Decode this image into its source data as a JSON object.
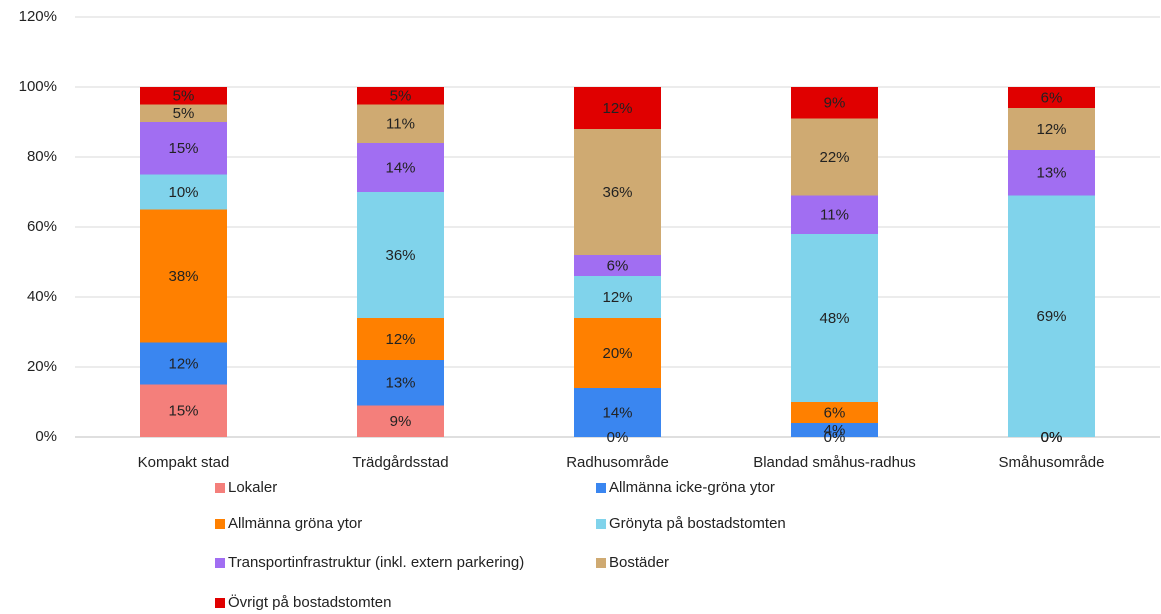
{
  "chart_data": {
    "type": "stacked_bar",
    "categories": [
      "Kompakt stad",
      "Trädgårdsstad",
      "Radhusområde",
      "Blandad småhus-radhus",
      "Småhusområde"
    ],
    "series": [
      {
        "name": "Lokaler",
        "color": "#f47f7b",
        "values": [
          15,
          9,
          0,
          0,
          0
        ],
        "value_labels": [
          "15%",
          "9%",
          "0%",
          "0%",
          "0%"
        ]
      },
      {
        "name": "Allmänna icke-gröna ytor",
        "color": "#3a86f0",
        "values": [
          12,
          13,
          14,
          4,
          0
        ],
        "value_labels": [
          "12%",
          "13%",
          "14%",
          "4%",
          "0%"
        ]
      },
      {
        "name": "Allmänna gröna ytor",
        "color": "#ff8000",
        "values": [
          38,
          12,
          20,
          6,
          0
        ],
        "value_labels": [
          "38%",
          "12%",
          "20%",
          "6%",
          "0%"
        ]
      },
      {
        "name": "Grönyta på bostadstomten",
        "color": "#80d3eb",
        "values": [
          10,
          36,
          12,
          48,
          69
        ],
        "value_labels": [
          "10%",
          "36%",
          "12%",
          "48%",
          "69%"
        ]
      },
      {
        "name": "Transportinfrastruktur (inkl. extern parkering)",
        "color": "#a16ef2",
        "values": [
          15,
          14,
          6,
          11,
          13
        ],
        "value_labels": [
          "15%",
          "14%",
          "6%",
          "11%",
          "13%"
        ]
      },
      {
        "name": "Bostäder",
        "color": "#cfaa72",
        "values": [
          5,
          11,
          36,
          22,
          12
        ],
        "value_labels": [
          "5%",
          "11%",
          "36%",
          "22%",
          "12%"
        ]
      },
      {
        "name": "Övrigt på bostadstomten",
        "color": "#e00000",
        "values": [
          5,
          5,
          12,
          9,
          6
        ],
        "value_labels": [
          "5%",
          "5%",
          "12%",
          "9%",
          "6%"
        ]
      }
    ],
    "ylim": [
      0,
      120
    ],
    "yticks": [
      {
        "value": 0,
        "label": "0%"
      },
      {
        "value": 20,
        "label": "20%"
      },
      {
        "value": 40,
        "label": "40%"
      },
      {
        "value": 60,
        "label": "60%"
      },
      {
        "value": 80,
        "label": "80%"
      },
      {
        "value": 100,
        "label": "100%"
      },
      {
        "value": 120,
        "label": "120%"
      }
    ],
    "grid": true,
    "legend": "bottom"
  }
}
